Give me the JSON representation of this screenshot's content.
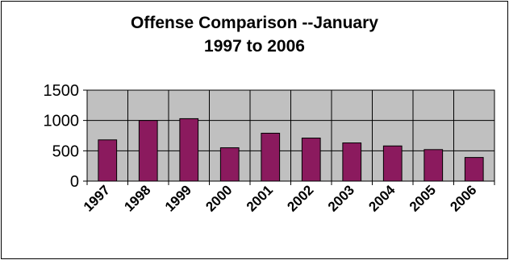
{
  "chart_data": {
    "type": "bar",
    "title_lines": [
      "Offense Comparison --January",
      "1997 to 2006"
    ],
    "categories": [
      "1997",
      "1998",
      "1999",
      "2000",
      "2001",
      "2002",
      "2003",
      "2004",
      "2005",
      "2006"
    ],
    "values": [
      680,
      1000,
      1030,
      550,
      790,
      710,
      630,
      580,
      520,
      390
    ],
    "ylim": [
      0,
      1500
    ],
    "yticks": [
      0,
      500,
      1000,
      1500
    ],
    "xlabel": "",
    "ylabel": "",
    "grid": true,
    "legend": "none",
    "colors": {
      "bar_fill": "#8B1A5E",
      "bar_stroke": "#000000",
      "plot_bg": "#C0C0C0",
      "grid": "#000000"
    }
  }
}
